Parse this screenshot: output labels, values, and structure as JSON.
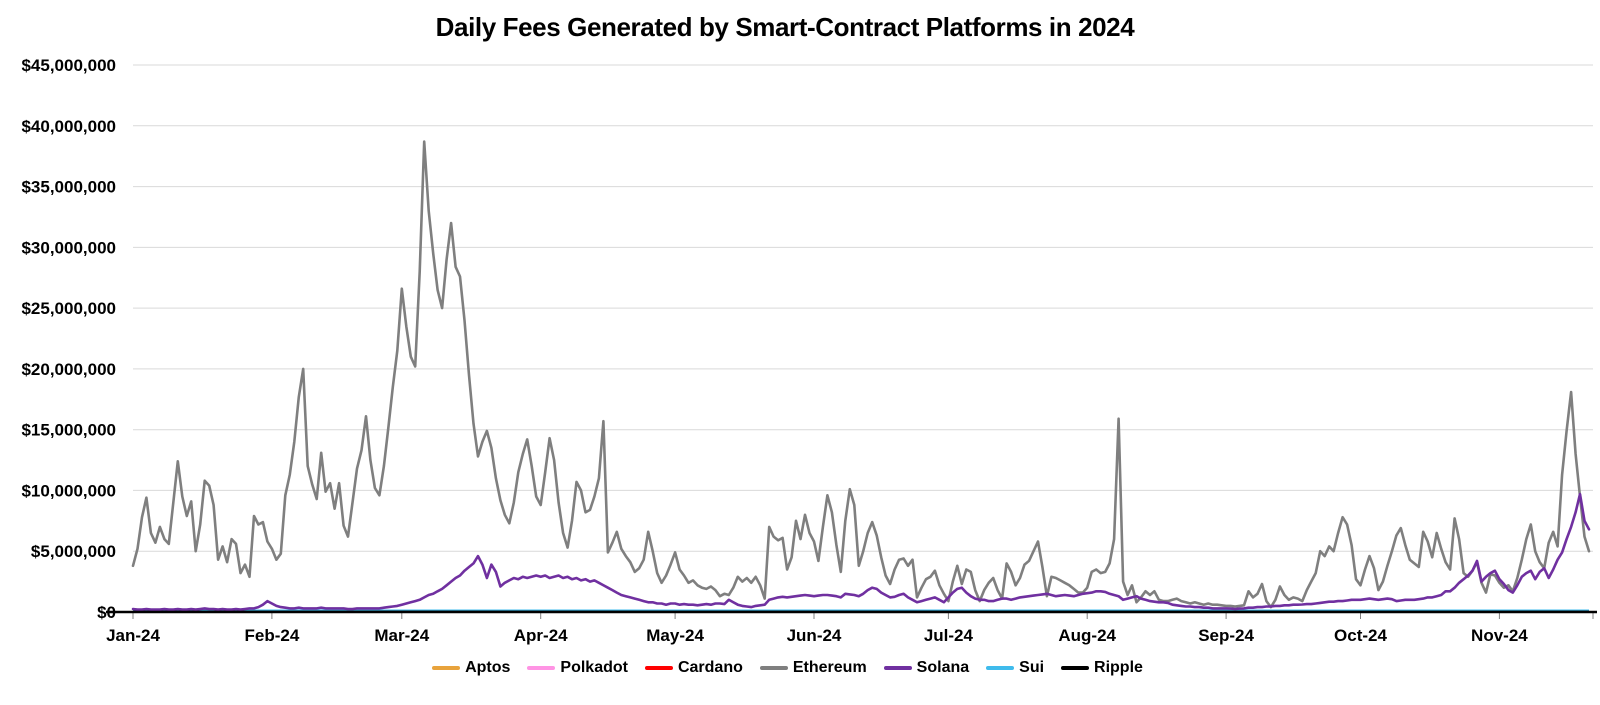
{
  "chart_data": {
    "type": "line",
    "title": "Daily Fees Generated by Smart-Contract Platforms in 2024",
    "values_unit": "USD_millions_per_day",
    "y_axis": {
      "min": 0,
      "max": 45000000,
      "grid": true,
      "grid_color": "#d9d9d9",
      "axis_line_color": "#000000",
      "tick_labels": [
        "$45,000,000",
        "$40,000,000",
        "$35,000,000",
        "$30,000,000",
        "$25,000,000",
        "$20,000,000",
        "$15,000,000",
        "$10,000,000",
        "$5,000,000",
        "$0"
      ]
    },
    "x_axis": {
      "ticks": [
        {
          "label": "Jan-24",
          "day": 0
        },
        {
          "label": "Feb-24",
          "day": 31
        },
        {
          "label": "Mar-24",
          "day": 60
        },
        {
          "label": "Apr-24",
          "day": 91
        },
        {
          "label": "May-24",
          "day": 121
        },
        {
          "label": "Jun-24",
          "day": 152
        },
        {
          "label": "Jul-24",
          "day": 182
        },
        {
          "label": "Aug-24",
          "day": 213
        },
        {
          "label": "Sep-24",
          "day": 244
        },
        {
          "label": "Oct-24",
          "day": 274
        },
        {
          "label": "Nov-24",
          "day": 305
        }
      ]
    },
    "legend": {
      "position": "bottom"
    },
    "series": [
      {
        "name": "Aptos",
        "color": "#e8a33c",
        "flat_value": 0.06
      },
      {
        "name": "Polkadot",
        "color": "#ff94e4",
        "flat_value": 0.05
      },
      {
        "name": "Cardano",
        "color": "#ff0000",
        "flat_value": 0.09
      },
      {
        "name": "Ethereum",
        "color": "#7f7f7f",
        "values": [
          3.8,
          5.2,
          7.8,
          9.4,
          6.5,
          5.7,
          7.0,
          6.0,
          5.6,
          9.0,
          12.4,
          9.5,
          7.9,
          9.1,
          5.0,
          7.2,
          10.8,
          10.4,
          8.8,
          4.3,
          5.4,
          4.1,
          6.0,
          5.6,
          3.2,
          3.9,
          2.9,
          7.9,
          7.2,
          7.4,
          5.8,
          5.2,
          4.3,
          4.8,
          9.6,
          11.3,
          14.0,
          17.7,
          20.0,
          12.0,
          10.5,
          9.3,
          13.1,
          9.9,
          10.6,
          8.5,
          10.6,
          7.1,
          6.2,
          9.0,
          11.8,
          13.3,
          16.1,
          12.5,
          10.2,
          9.6,
          12.0,
          15.2,
          18.5,
          21.5,
          26.6,
          23.5,
          21.0,
          20.2,
          28.0,
          38.7,
          33.0,
          29.5,
          26.5,
          25.0,
          29.0,
          32.0,
          28.4,
          27.6,
          24.0,
          19.5,
          15.5,
          12.8,
          14.0,
          14.9,
          13.5,
          11.0,
          9.2,
          8.0,
          7.3,
          9.0,
          11.5,
          13.0,
          14.2,
          12.0,
          9.5,
          8.8,
          11.5,
          14.3,
          12.5,
          9.0,
          6.5,
          5.3,
          7.5,
          10.7,
          10.0,
          8.2,
          8.4,
          9.5,
          11.0,
          15.7,
          4.9,
          5.7,
          6.6,
          5.2,
          4.6,
          4.1,
          3.3,
          3.6,
          4.3,
          6.6,
          5.0,
          3.2,
          2.4,
          3.0,
          3.9,
          4.9,
          3.5,
          3.0,
          2.4,
          2.6,
          2.2,
          2.0,
          1.9,
          2.1,
          1.8,
          1.3,
          1.5,
          1.4,
          2.0,
          2.9,
          2.5,
          2.8,
          2.4,
          2.9,
          2.2,
          1.1,
          7.0,
          6.2,
          5.9,
          6.1,
          3.5,
          4.5,
          7.5,
          6.0,
          8.0,
          6.5,
          5.8,
          4.2,
          7.0,
          9.6,
          8.2,
          5.5,
          3.3,
          7.5,
          10.1,
          8.8,
          3.8,
          5.0,
          6.5,
          7.4,
          6.3,
          4.5,
          3.0,
          2.3,
          3.5,
          4.3,
          4.4,
          3.8,
          4.3,
          1.2,
          2.0,
          2.7,
          2.9,
          3.4,
          2.2,
          1.5,
          0.9,
          2.5,
          3.8,
          2.3,
          3.5,
          3.3,
          1.8,
          0.9,
          1.8,
          2.4,
          2.8,
          1.8,
          1.1,
          4.0,
          3.3,
          2.2,
          2.8,
          3.9,
          4.2,
          5.0,
          5.8,
          3.7,
          1.3,
          2.9,
          2.8,
          2.6,
          2.4,
          2.2,
          1.9,
          1.6,
          1.6,
          2.0,
          3.3,
          3.5,
          3.2,
          3.3,
          4.0,
          6.0,
          15.9,
          2.5,
          1.4,
          2.2,
          0.8,
          1.2,
          1.7,
          1.4,
          1.7,
          1.0,
          0.9,
          0.9,
          1.0,
          1.1,
          0.9,
          0.8,
          0.7,
          0.8,
          0.7,
          0.6,
          0.7,
          0.6,
          0.6,
          0.55,
          0.5,
          0.5,
          0.45,
          0.5,
          0.55,
          1.7,
          1.2,
          1.5,
          2.3,
          0.9,
          0.4,
          1.0,
          2.1,
          1.4,
          1.0,
          1.2,
          1.1,
          0.9,
          1.8,
          2.5,
          3.2,
          5.0,
          4.6,
          5.4,
          5.0,
          6.5,
          7.8,
          7.2,
          5.5,
          2.7,
          2.2,
          3.5,
          4.6,
          3.6,
          1.8,
          2.5,
          3.8,
          5.0,
          6.3,
          6.9,
          5.5,
          4.3,
          4.0,
          3.7,
          6.6,
          5.8,
          4.5,
          6.5,
          5.2,
          4.1,
          3.5,
          7.7,
          6.0,
          3.2,
          2.9,
          3.4,
          4.1,
          2.4,
          1.6,
          3.1,
          3.0,
          2.4,
          2.0,
          2.2,
          1.7,
          2.8,
          4.3,
          6.0,
          7.2,
          5.0,
          4.1,
          3.6,
          5.7,
          6.6,
          5.4,
          11.3,
          14.9,
          18.1,
          13.0,
          9.5,
          6.2,
          5.0
        ]
      },
      {
        "name": "Solana",
        "color": "#7030a0",
        "values": [
          0.25,
          0.2,
          0.2,
          0.25,
          0.2,
          0.2,
          0.2,
          0.25,
          0.2,
          0.2,
          0.25,
          0.2,
          0.2,
          0.25,
          0.2,
          0.25,
          0.3,
          0.25,
          0.25,
          0.2,
          0.25,
          0.2,
          0.2,
          0.25,
          0.2,
          0.25,
          0.3,
          0.3,
          0.4,
          0.6,
          0.9,
          0.7,
          0.5,
          0.4,
          0.35,
          0.3,
          0.3,
          0.35,
          0.3,
          0.3,
          0.3,
          0.3,
          0.35,
          0.3,
          0.3,
          0.3,
          0.3,
          0.3,
          0.25,
          0.25,
          0.3,
          0.3,
          0.3,
          0.3,
          0.3,
          0.3,
          0.35,
          0.4,
          0.45,
          0.5,
          0.6,
          0.7,
          0.8,
          0.9,
          1.0,
          1.2,
          1.4,
          1.5,
          1.7,
          1.9,
          2.2,
          2.5,
          2.8,
          3.0,
          3.4,
          3.7,
          4.0,
          4.6,
          3.9,
          2.8,
          3.9,
          3.3,
          2.1,
          2.4,
          2.6,
          2.8,
          2.7,
          2.9,
          2.8,
          2.9,
          3.0,
          2.9,
          3.0,
          2.8,
          2.9,
          3.0,
          2.8,
          2.9,
          2.7,
          2.8,
          2.6,
          2.7,
          2.5,
          2.6,
          2.4,
          2.2,
          2.0,
          1.8,
          1.6,
          1.4,
          1.3,
          1.2,
          1.1,
          1.0,
          0.9,
          0.8,
          0.8,
          0.7,
          0.7,
          0.6,
          0.7,
          0.7,
          0.6,
          0.65,
          0.6,
          0.6,
          0.55,
          0.6,
          0.65,
          0.6,
          0.7,
          0.7,
          0.65,
          1.0,
          0.8,
          0.6,
          0.5,
          0.45,
          0.4,
          0.5,
          0.55,
          0.6,
          1.0,
          1.1,
          1.2,
          1.25,
          1.2,
          1.25,
          1.3,
          1.35,
          1.4,
          1.35,
          1.3,
          1.35,
          1.4,
          1.4,
          1.35,
          1.3,
          1.2,
          1.5,
          1.45,
          1.4,
          1.3,
          1.5,
          1.8,
          2.0,
          1.9,
          1.6,
          1.4,
          1.2,
          1.25,
          1.4,
          1.5,
          1.2,
          1.0,
          0.8,
          0.9,
          1.0,
          1.1,
          1.2,
          1.0,
          0.8,
          1.2,
          1.6,
          1.9,
          2.0,
          1.6,
          1.3,
          1.1,
          1.0,
          1.0,
          0.9,
          0.9,
          1.0,
          1.1,
          1.1,
          1.0,
          1.1,
          1.2,
          1.25,
          1.3,
          1.35,
          1.4,
          1.45,
          1.5,
          1.4,
          1.3,
          1.35,
          1.4,
          1.35,
          1.3,
          1.4,
          1.5,
          1.55,
          1.6,
          1.7,
          1.7,
          1.65,
          1.5,
          1.4,
          1.3,
          1.0,
          1.1,
          1.2,
          1.3,
          1.1,
          1.0,
          0.9,
          0.85,
          0.8,
          0.8,
          0.75,
          0.6,
          0.55,
          0.5,
          0.45,
          0.45,
          0.4,
          0.4,
          0.35,
          0.35,
          0.3,
          0.3,
          0.3,
          0.3,
          0.28,
          0.25,
          0.28,
          0.3,
          0.35,
          0.35,
          0.4,
          0.4,
          0.45,
          0.45,
          0.5,
          0.5,
          0.55,
          0.55,
          0.6,
          0.6,
          0.62,
          0.65,
          0.65,
          0.7,
          0.75,
          0.8,
          0.85,
          0.85,
          0.9,
          0.9,
          0.95,
          1.0,
          1.0,
          1.0,
          1.05,
          1.1,
          1.05,
          1.0,
          1.05,
          1.1,
          1.05,
          0.9,
          0.95,
          1.0,
          1.0,
          1.0,
          1.05,
          1.1,
          1.2,
          1.2,
          1.3,
          1.4,
          1.7,
          1.7,
          2.0,
          2.4,
          2.7,
          3.0,
          3.4,
          4.2,
          2.5,
          2.9,
          3.2,
          3.4,
          2.7,
          2.3,
          1.8,
          1.6,
          2.2,
          2.9,
          3.2,
          3.4,
          2.7,
          3.3,
          3.6,
          2.8,
          3.5,
          4.3,
          4.9,
          6.0,
          7.0,
          8.2,
          9.7,
          7.5,
          6.8
        ]
      },
      {
        "name": "Sui",
        "color": "#3fbbec",
        "flat_value": 0.12
      },
      {
        "name": "Ripple",
        "color": "#000000",
        "flat_value": 0.03
      }
    ]
  }
}
